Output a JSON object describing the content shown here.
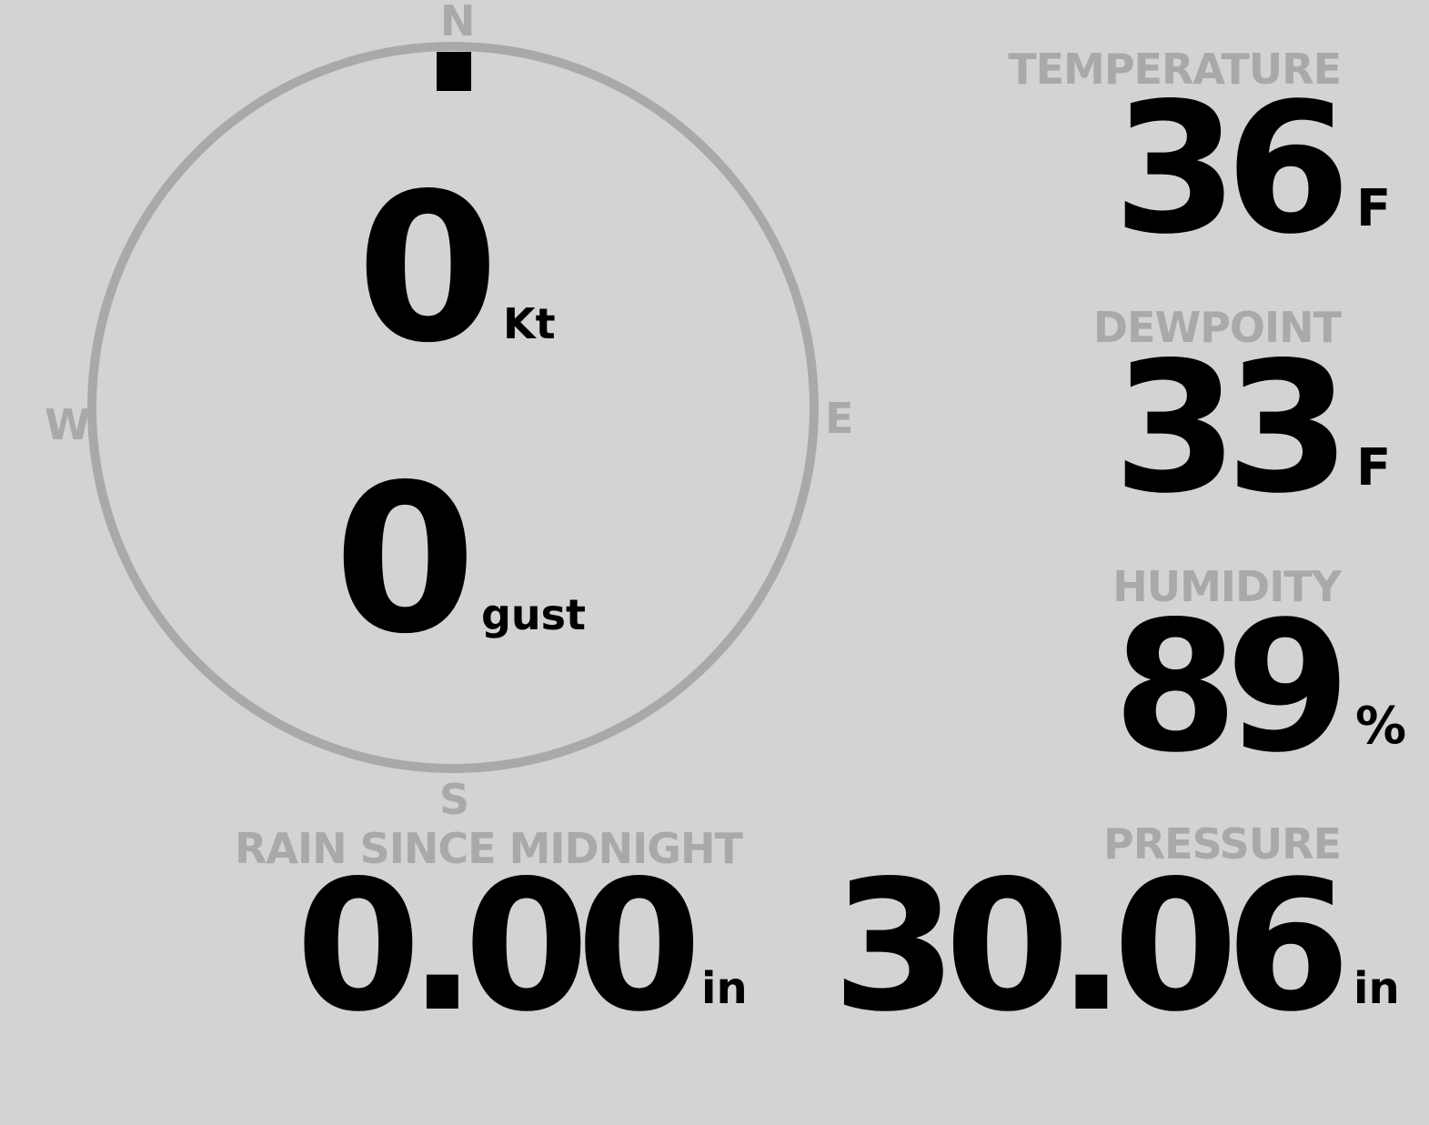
{
  "wind": {
    "speed": "0",
    "speed_unit": "Kt",
    "gust": "0",
    "gust_unit": "gust",
    "direction_deg": 0,
    "compass": {
      "north": "N",
      "east": "E",
      "south": "S",
      "west": "W"
    }
  },
  "temperature": {
    "label": "TEMPERATURE",
    "value": "36",
    "unit": "F"
  },
  "dewpoint": {
    "label": "DEWPOINT",
    "value": "33",
    "unit": "F"
  },
  "humidity": {
    "label": "HUMIDITY",
    "value": "89",
    "unit": "%"
  },
  "pressure": {
    "label": "PRESSURE",
    "value": "30.06",
    "unit": "in"
  },
  "rain": {
    "label": "RAIN SINCE MIDNIGHT",
    "value": "0.00",
    "unit": "in"
  },
  "colors": {
    "background": "#d3d3d3",
    "muted": "#a9a9a9",
    "value": "#000000"
  }
}
